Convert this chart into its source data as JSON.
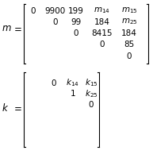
{
  "m_label": "m",
  "k_label": "k",
  "m_rows": [
    [
      "0",
      "9900",
      "199",
      "m_{14}",
      "m_{15}"
    ],
    [
      "",
      "0",
      "99",
      "184",
      "m_{25}"
    ],
    [
      "",
      "",
      "0",
      "8415",
      "184"
    ],
    [
      "",
      "",
      "",
      "0",
      "85"
    ],
    [
      "",
      "",
      "",
      "",
      "0"
    ]
  ],
  "k_rows": [
    [
      "",
      "0",
      "k_{14}",
      "k_{15}"
    ],
    [
      "",
      "",
      "1",
      "k_{25}"
    ],
    [
      "",
      "",
      "",
      "0"
    ],
    [
      "",
      "",
      "",
      ""
    ],
    [
      "",
      "",
      "",
      ""
    ]
  ],
  "font_size": 7.5,
  "label_font_size": 8.5,
  "bg_color": "#ffffff",
  "text_color": "#000000"
}
